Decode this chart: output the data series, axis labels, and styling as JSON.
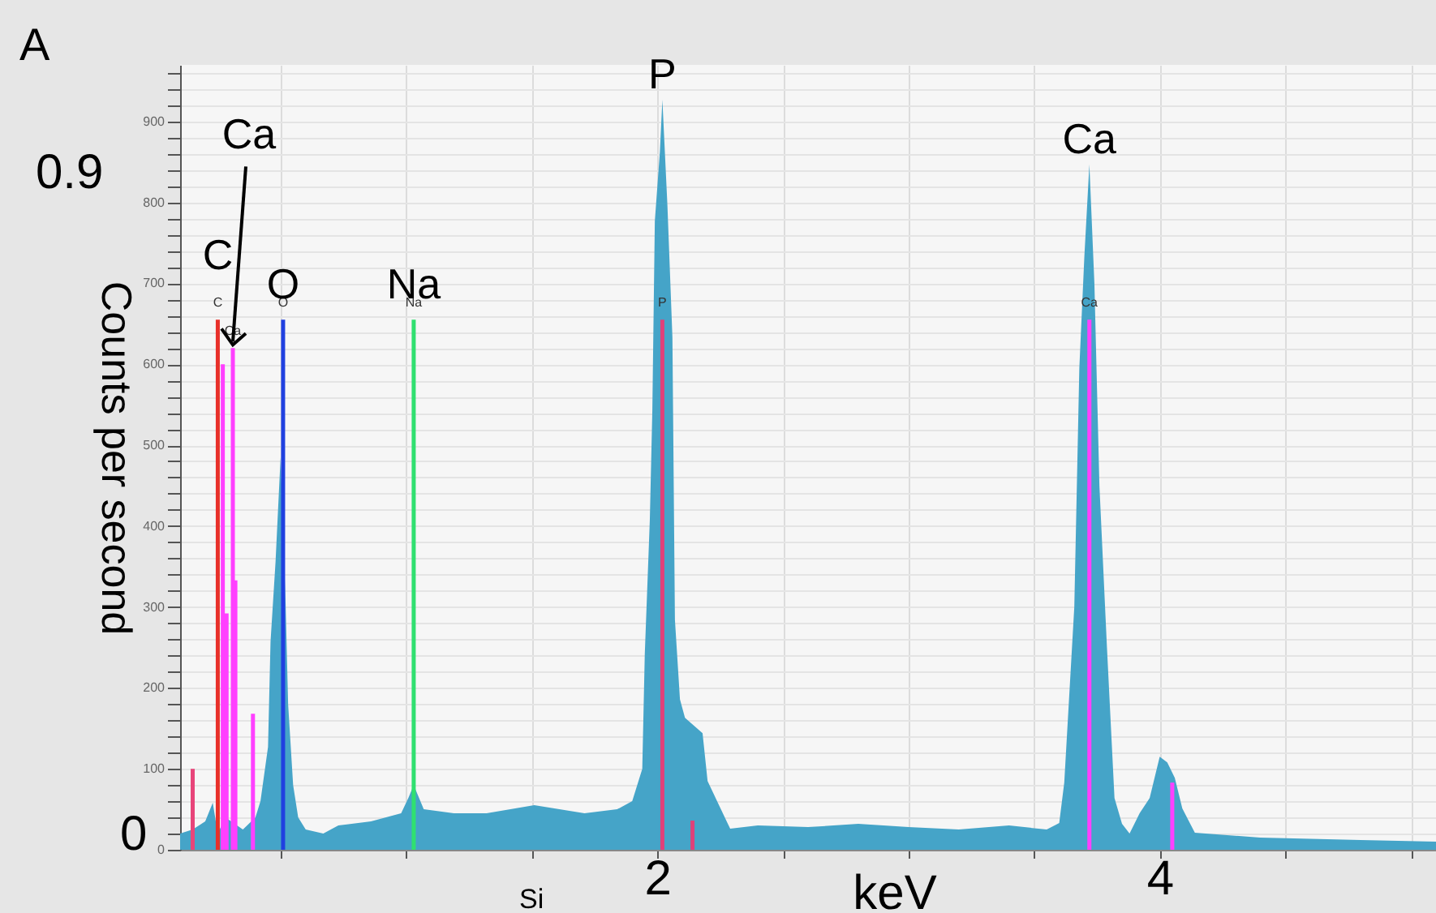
{
  "chart_data": {
    "type": "area",
    "xlabel": "keV",
    "ylabel": "Counts per second",
    "xlim": [
      0.1,
      5.1
    ],
    "xticks": [
      {
        "value": 0.5,
        "label": null
      },
      {
        "value": 1,
        "label": null
      },
      {
        "value": 1.5,
        "label": null
      },
      2,
      {
        "value": 2.5,
        "label": null
      },
      {
        "value": 3,
        "label": null
      },
      {
        "value": 3.5,
        "label": null
      },
      4,
      {
        "value": 4.5,
        "label": null
      },
      {
        "value": 5,
        "label": null
      }
    ],
    "ylim": [
      0,
      970
    ],
    "yticks": [
      0,
      {
        "value": 20,
        "label": null
      },
      {
        "value": 40,
        "label": null
      },
      {
        "value": 60,
        "label": null
      },
      {
        "value": 80,
        "label": null
      },
      100,
      {
        "value": 120,
        "label": null
      },
      {
        "value": 140,
        "label": null
      },
      {
        "value": 160,
        "label": null
      },
      {
        "value": 180,
        "label": null
      },
      200,
      {
        "value": 220,
        "label": null
      },
      {
        "value": 240,
        "label": null
      },
      {
        "value": 260,
        "label": null
      },
      {
        "value": 280,
        "label": null
      },
      300,
      {
        "value": 320,
        "label": null
      },
      {
        "value": 340,
        "label": null
      },
      {
        "value": 360,
        "label": null
      },
      {
        "value": 380,
        "label": null
      },
      400,
      {
        "value": 420,
        "label": null
      },
      {
        "value": 440,
        "label": null
      },
      {
        "value": 460,
        "label": null
      },
      {
        "value": 480,
        "label": null
      },
      500,
      {
        "value": 520,
        "label": null
      },
      {
        "value": 540,
        "label": null
      },
      {
        "value": 560,
        "label": null
      },
      {
        "value": 580,
        "label": null
      },
      600,
      {
        "value": 620,
        "label": null
      },
      {
        "value": 640,
        "label": null
      },
      {
        "value": 660,
        "label": null
      },
      {
        "value": 680,
        "label": null
      },
      700,
      {
        "value": 720,
        "label": null
      },
      {
        "value": 740,
        "label": null
      },
      {
        "value": 760,
        "label": null
      },
      {
        "value": 780,
        "label": null
      },
      800,
      {
        "value": 820,
        "label": null
      },
      {
        "value": 840,
        "label": null
      },
      {
        "value": 860,
        "label": null
      },
      {
        "value": 880,
        "label": null
      },
      900,
      {
        "value": 920,
        "label": null
      },
      {
        "value": 940,
        "label": null
      },
      {
        "value": 960,
        "label": null
      }
    ],
    "grid": true,
    "series": [
      {
        "color": "#45a4c8",
        "x": [
          0.1,
          0.15,
          0.2,
          0.23,
          0.25,
          0.28,
          0.35,
          0.4,
          0.42,
          0.45,
          0.46,
          0.48,
          0.5,
          0.52,
          0.53,
          0.55,
          0.57,
          0.6,
          0.67,
          0.73,
          0.86,
          0.98,
          1.01,
          1.03,
          1.07,
          1.19,
          1.32,
          1.51,
          1.71,
          1.84,
          1.9,
          1.94,
          1.95,
          1.97,
          1.98,
          1.99,
          2.01,
          2.02,
          2.04,
          2.06,
          2.07,
          2.09,
          2.11,
          2.18,
          2.2,
          2.25,
          2.29,
          2.4,
          2.6,
          2.8,
          3.0,
          3.2,
          3.4,
          3.55,
          3.6,
          3.62,
          3.66,
          3.68,
          3.7,
          3.72,
          3.74,
          3.76,
          3.79,
          3.82,
          3.85,
          3.88,
          3.92,
          3.96,
          4.0,
          4.03,
          4.06,
          4.09,
          4.14,
          4.4,
          4.8,
          5.1
        ],
        "values": [
          20,
          25,
          35,
          58,
          20,
          40,
          25,
          40,
          60,
          127,
          257,
          356,
          485,
          305,
          180,
          80,
          40,
          25,
          20,
          30,
          35,
          45,
          65,
          80,
          50,
          45,
          45,
          55,
          45,
          50,
          60,
          100,
          242,
          407,
          542,
          777,
          862,
          927,
          797,
          633,
          284,
          186,
          163,
          144,
          85,
          52,
          26,
          30,
          28,
          32,
          28,
          25,
          30,
          25,
          33,
          83,
          300,
          595,
          733,
          847,
          700,
          450,
          250,
          64,
          32,
          20,
          45,
          64,
          115,
          108,
          89,
          51,
          21,
          15,
          12,
          10
        ]
      },
      {
        "type": "bar",
        "x": [
          0.15,
          0.25,
          0.27,
          0.285,
          0.31,
          0.32,
          0.39,
          0.51,
          1.03,
          2.02,
          2.14,
          3.72,
          4.05
        ],
        "values": [
          100,
          655,
          600,
          292,
          620,
          333,
          168,
          655,
          655,
          655,
          36,
          655,
          83
        ],
        "colors": [
          "#e8457a",
          "#e8302a",
          "#ff40ff",
          "#ff40ff",
          "#ff40ff",
          "#ff40ff",
          "#ff40ff",
          "#2040e0",
          "#30e070",
          "#e0407a",
          "#e0407a",
          "#ff40ff",
          "#ff40ff"
        ]
      }
    ],
    "annotations": [
      {
        "text": "C",
        "x": 0.25,
        "y": 655
      },
      {
        "text": "Ca",
        "x": 0.31,
        "y": 620
      },
      {
        "text": "O",
        "x": 0.51,
        "y": 655
      },
      {
        "text": "Na",
        "x": 1.03,
        "y": 655
      },
      {
        "text": "P",
        "x": 2.02,
        "y": 927
      },
      {
        "text": "Ca",
        "x": 3.72,
        "y": 847
      },
      {
        "text": "C",
        "x": 0.25,
        "y": 655
      },
      {
        "text": "Ca",
        "x": 0.31,
        "y": 620
      },
      {
        "text": "O",
        "x": 0.51,
        "y": 655
      },
      {
        "text": "Na",
        "x": 1.03,
        "y": 655
      },
      {
        "text": "P",
        "x": 2.02,
        "y": 655
      },
      {
        "text": "Ca",
        "x": 3.72,
        "y": 655
      },
      "A",
      "0.9",
      "0",
      "Si"
    ]
  }
}
